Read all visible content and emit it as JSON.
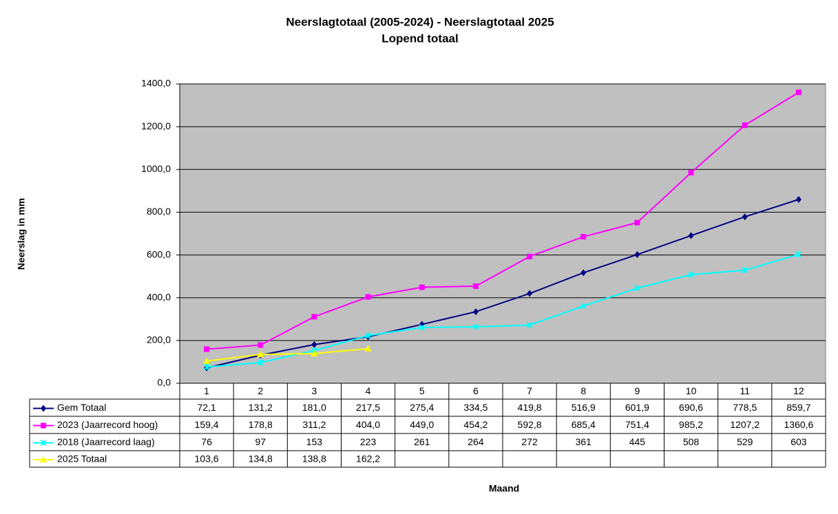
{
  "chart_data": {
    "type": "line",
    "title": "Neerslagtotaal (2005-2024)  - Neerslagtotaal 2025",
    "subtitle": "Lopend totaal",
    "y_label": "Neerslag in mm",
    "x_label": "Maand",
    "categories": [
      "1",
      "2",
      "3",
      "4",
      "5",
      "6",
      "7",
      "8",
      "9",
      "10",
      "11",
      "12"
    ],
    "ylim": [
      0,
      1400
    ],
    "yticks": [
      {
        "value": 0,
        "label": "0,0"
      },
      {
        "value": 200,
        "label": "200,0"
      },
      {
        "value": 400,
        "label": "400,0"
      },
      {
        "value": 600,
        "label": "600,0"
      },
      {
        "value": 800,
        "label": "800,0"
      },
      {
        "value": 1000,
        "label": "1000,0"
      },
      {
        "value": 1200,
        "label": "1200,0"
      },
      {
        "value": 1400,
        "label": "1400,0"
      }
    ],
    "grid": true,
    "background": "#c0c0c0",
    "series": [
      {
        "name": "Gem Totaal",
        "color": "#000080",
        "marker": "diamond",
        "values": [
          72.1,
          131.2,
          181.0,
          217.5,
          275.4,
          334.5,
          419.8,
          516.9,
          601.9,
          690.6,
          778.5,
          859.7
        ],
        "value_labels": [
          "72,1",
          "131,2",
          "181,0",
          "217,5",
          "275,4",
          "334,5",
          "419,8",
          "516,9",
          "601,9",
          "690,6",
          "778,5",
          "859,7"
        ]
      },
      {
        "name": "2023 (Jaarrecord hoog)",
        "color": "#ff00ff",
        "marker": "square",
        "values": [
          159.4,
          178.8,
          311.2,
          404.0,
          449.0,
          454.2,
          592.8,
          685.4,
          751.4,
          985.2,
          1207.2,
          1360.6
        ],
        "value_labels": [
          "159,4",
          "178,8",
          "311,2",
          "404,0",
          "449,0",
          "454,2",
          "592,8",
          "685,4",
          "751,4",
          "985,2",
          "1207,2",
          "1360,6"
        ]
      },
      {
        "name": "2018 (Jaarrecord laag)",
        "color": "#00ffff",
        "marker": "cross",
        "values": [
          76,
          97,
          153,
          223,
          261,
          264,
          272,
          361,
          445,
          508,
          529,
          603
        ]
      },
      {
        "name": "2025 Totaal",
        "color": "#ffff00",
        "marker": "triangle",
        "values": [
          103.6,
          134.8,
          138.8,
          162.2,
          null,
          null,
          null,
          null,
          null,
          null,
          null,
          null
        ],
        "value_labels": [
          "103,6",
          "134,8",
          "138,8",
          "162,2",
          null,
          null,
          null,
          null,
          null,
          null,
          null,
          null
        ]
      }
    ]
  }
}
